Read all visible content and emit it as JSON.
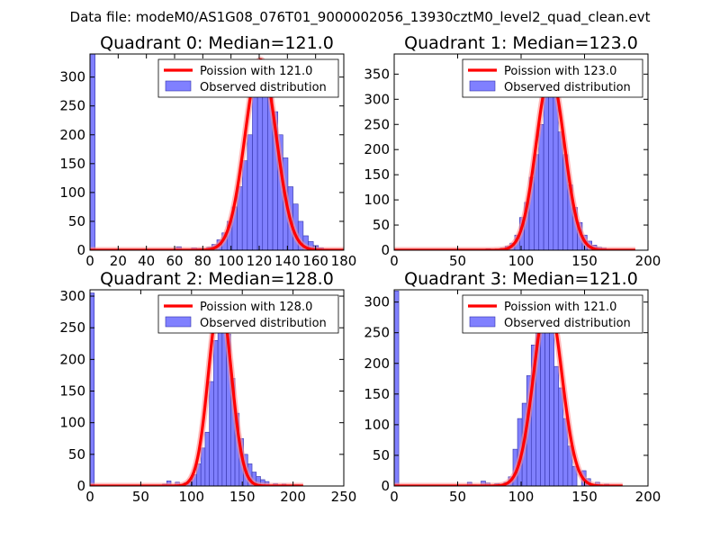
{
  "suptitle": "Data file: modeM0/AS1G08_076T01_9000002056_13930cztM0_level2_quad_clean.evt",
  "colors": {
    "bar_fill": "#8080ff",
    "bar_edge": "#3333aa",
    "curve": "#ff0000",
    "curve_glow": "#ff9090",
    "axis": "#000000"
  },
  "chart_data": [
    {
      "type": "bar",
      "title": "Quadrant 0: Median=121.0",
      "xlim": [
        0,
        180
      ],
      "ylim": [
        0,
        340
      ],
      "xticks": [
        0,
        20,
        40,
        60,
        80,
        100,
        120,
        140,
        160,
        180
      ],
      "yticks": [
        0,
        50,
        100,
        150,
        200,
        250,
        300
      ],
      "legend": [
        "Poission with 121.0",
        "Observed distribution"
      ],
      "legend_position": "top-right",
      "bin_width": 3.6,
      "bins": [
        {
          "x": 0,
          "y": 340
        },
        {
          "x": 61.2,
          "y": 6
        },
        {
          "x": 64.8,
          "y": 1
        },
        {
          "x": 68.4,
          "y": 1
        },
        {
          "x": 72.0,
          "y": 4
        },
        {
          "x": 75.6,
          "y": 3
        },
        {
          "x": 79.2,
          "y": 2
        },
        {
          "x": 82.8,
          "y": 5
        },
        {
          "x": 86.4,
          "y": 10
        },
        {
          "x": 90.0,
          "y": 18
        },
        {
          "x": 93.6,
          "y": 30
        },
        {
          "x": 97.2,
          "y": 50
        },
        {
          "x": 100.8,
          "y": 75
        },
        {
          "x": 104.4,
          "y": 110
        },
        {
          "x": 108.0,
          "y": 155
        },
        {
          "x": 111.6,
          "y": 200
        },
        {
          "x": 115.2,
          "y": 265
        },
        {
          "x": 118.8,
          "y": 275
        },
        {
          "x": 122.4,
          "y": 270
        },
        {
          "x": 126.0,
          "y": 268
        },
        {
          "x": 129.6,
          "y": 240
        },
        {
          "x": 133.2,
          "y": 200
        },
        {
          "x": 136.8,
          "y": 160
        },
        {
          "x": 140.4,
          "y": 110
        },
        {
          "x": 144.0,
          "y": 80
        },
        {
          "x": 147.6,
          "y": 50
        },
        {
          "x": 151.2,
          "y": 25
        },
        {
          "x": 154.8,
          "y": 15
        },
        {
          "x": 158.4,
          "y": 8
        },
        {
          "x": 162.0,
          "y": 4
        },
        {
          "x": 165.6,
          "y": 2
        }
      ],
      "poisson": {
        "mean": 121.0,
        "amplitude": 330,
        "sigma": 11.0,
        "range": [
          0,
          180
        ]
      }
    },
    {
      "type": "bar",
      "title": "Quadrant 1: Median=123.0",
      "xlim": [
        0,
        200
      ],
      "ylim": [
        0,
        390
      ],
      "xticks": [
        0,
        50,
        100,
        150,
        200
      ],
      "yticks": [
        0,
        50,
        100,
        150,
        200,
        250,
        300,
        350
      ],
      "legend": [
        "Poission with 123.0",
        "Observed distribution"
      ],
      "legend_position": "top-right",
      "bin_width": 3.8,
      "bins": [
        {
          "x": 83.6,
          "y": 4
        },
        {
          "x": 87.4,
          "y": 8
        },
        {
          "x": 91.2,
          "y": 14
        },
        {
          "x": 95.0,
          "y": 30
        },
        {
          "x": 98.8,
          "y": 65
        },
        {
          "x": 102.6,
          "y": 95
        },
        {
          "x": 106.4,
          "y": 145
        },
        {
          "x": 110.2,
          "y": 190
        },
        {
          "x": 114.0,
          "y": 250
        },
        {
          "x": 117.8,
          "y": 330
        },
        {
          "x": 121.6,
          "y": 345
        },
        {
          "x": 125.4,
          "y": 310
        },
        {
          "x": 129.2,
          "y": 235
        },
        {
          "x": 133.0,
          "y": 190
        },
        {
          "x": 136.8,
          "y": 130
        },
        {
          "x": 140.6,
          "y": 85
        },
        {
          "x": 144.4,
          "y": 55
        },
        {
          "x": 148.2,
          "y": 30
        },
        {
          "x": 152.0,
          "y": 18
        },
        {
          "x": 155.8,
          "y": 10
        },
        {
          "x": 159.6,
          "y": 6
        },
        {
          "x": 163.4,
          "y": 4
        },
        {
          "x": 72.2,
          "y": 3
        },
        {
          "x": 76.0,
          "y": 2
        }
      ],
      "poisson": {
        "mean": 123.0,
        "amplitude": 350,
        "sigma": 11.1,
        "range": [
          0,
          190
        ]
      }
    },
    {
      "type": "bar",
      "title": "Quadrant 2: Median=128.0",
      "xlim": [
        0,
        250
      ],
      "ylim": [
        0,
        310
      ],
      "xticks": [
        0,
        50,
        100,
        150,
        200,
        250
      ],
      "yticks": [
        0,
        50,
        100,
        150,
        200,
        250,
        300
      ],
      "legend": [
        "Poission with 128.0",
        "Observed distribution"
      ],
      "legend_position": "top-right",
      "bin_width": 4.2,
      "bins": [
        {
          "x": 0,
          "y": 305
        },
        {
          "x": 71.4,
          "y": 3
        },
        {
          "x": 75.6,
          "y": 8
        },
        {
          "x": 79.8,
          "y": 2
        },
        {
          "x": 84.0,
          "y": 6
        },
        {
          "x": 92.4,
          "y": 5
        },
        {
          "x": 96.6,
          "y": 10
        },
        {
          "x": 100.8,
          "y": 18
        },
        {
          "x": 105.0,
          "y": 35
        },
        {
          "x": 109.2,
          "y": 60
        },
        {
          "x": 113.4,
          "y": 85
        },
        {
          "x": 117.6,
          "y": 165
        },
        {
          "x": 121.8,
          "y": 230
        },
        {
          "x": 126.0,
          "y": 290
        },
        {
          "x": 130.2,
          "y": 285
        },
        {
          "x": 134.4,
          "y": 240
        },
        {
          "x": 138.6,
          "y": 170
        },
        {
          "x": 142.8,
          "y": 115
        },
        {
          "x": 147.0,
          "y": 75
        },
        {
          "x": 151.2,
          "y": 50
        },
        {
          "x": 155.4,
          "y": 35
        },
        {
          "x": 159.6,
          "y": 22
        },
        {
          "x": 163.8,
          "y": 15
        },
        {
          "x": 168.0,
          "y": 10
        },
        {
          "x": 172.2,
          "y": 7
        },
        {
          "x": 180.6,
          "y": 4
        },
        {
          "x": 189.0,
          "y": 3
        },
        {
          "x": 201.6,
          "y": 2
        }
      ],
      "poisson": {
        "mean": 128.0,
        "amplitude": 295,
        "sigma": 11.3,
        "range": [
          0,
          210
        ]
      }
    },
    {
      "type": "bar",
      "title": "Quadrant 3: Median=121.0",
      "xlim": [
        0,
        200
      ],
      "ylim": [
        0,
        320
      ],
      "xticks": [
        0,
        50,
        100,
        150,
        200
      ],
      "yticks": [
        0,
        50,
        100,
        150,
        200,
        250,
        300
      ],
      "legend": [
        "Poission with 121.0",
        "Observed distribution"
      ],
      "legend_position": "top-right",
      "bin_width": 3.6,
      "bins": [
        {
          "x": 0,
          "y": 318
        },
        {
          "x": 57.6,
          "y": 6
        },
        {
          "x": 61.2,
          "y": 2
        },
        {
          "x": 68.4,
          "y": 8
        },
        {
          "x": 72.0,
          "y": 5
        },
        {
          "x": 79.2,
          "y": 4
        },
        {
          "x": 82.8,
          "y": 3
        },
        {
          "x": 86.4,
          "y": 6
        },
        {
          "x": 90.0,
          "y": 15
        },
        {
          "x": 93.6,
          "y": 60
        },
        {
          "x": 97.2,
          "y": 110
        },
        {
          "x": 100.8,
          "y": 135
        },
        {
          "x": 104.4,
          "y": 180
        },
        {
          "x": 108.0,
          "y": 230
        },
        {
          "x": 111.6,
          "y": 280
        },
        {
          "x": 115.2,
          "y": 255
        },
        {
          "x": 118.8,
          "y": 300
        },
        {
          "x": 122.4,
          "y": 285
        },
        {
          "x": 126.0,
          "y": 195
        },
        {
          "x": 129.6,
          "y": 160
        },
        {
          "x": 133.2,
          "y": 110
        },
        {
          "x": 136.8,
          "y": 65
        },
        {
          "x": 140.4,
          "y": 32
        },
        {
          "x": 147.6,
          "y": 25
        },
        {
          "x": 151.2,
          "y": 12
        },
        {
          "x": 158.4,
          "y": 6
        },
        {
          "x": 165.6,
          "y": 3
        }
      ],
      "poisson": {
        "mean": 121.0,
        "amplitude": 305,
        "sigma": 11.0,
        "range": [
          0,
          180
        ]
      }
    }
  ]
}
